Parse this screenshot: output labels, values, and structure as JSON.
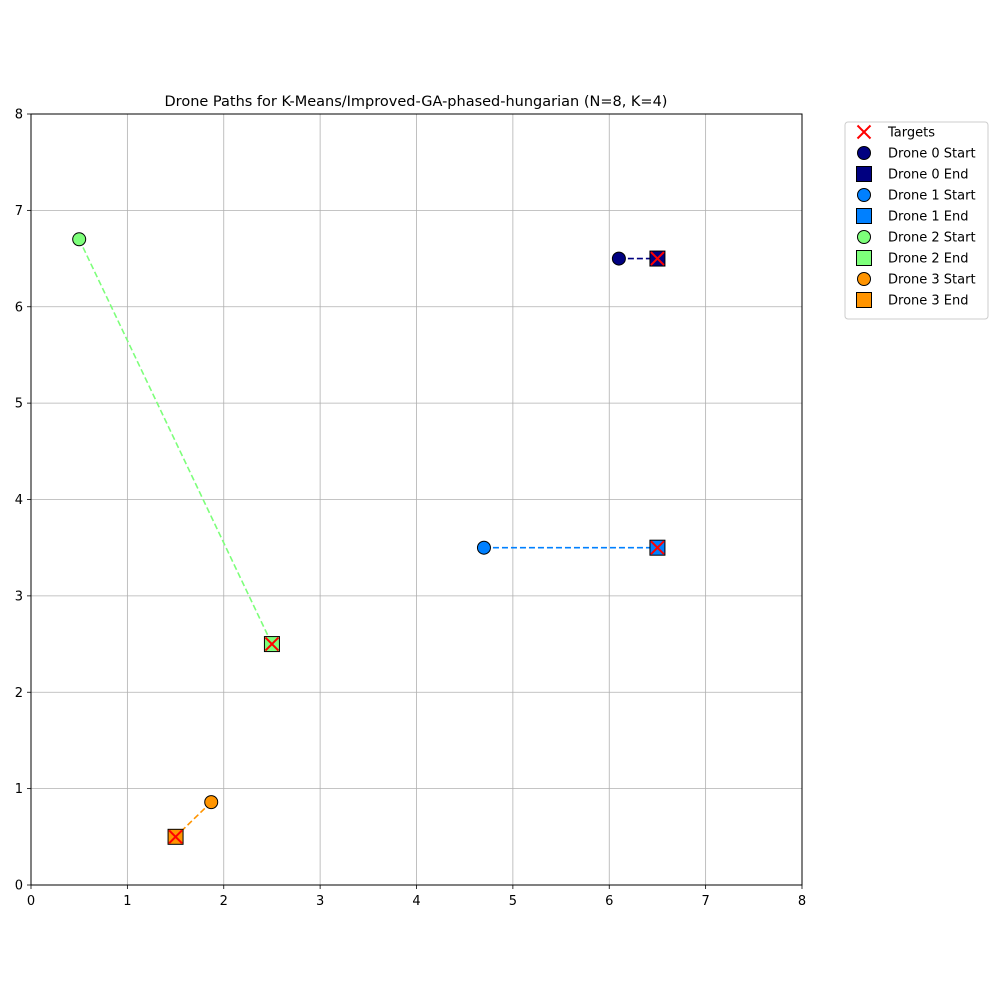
{
  "chart_data": {
    "type": "scatter",
    "title": "Drone Paths for K-Means/Improved-GA-phased-hungarian (N=8, K=4)",
    "xlabel": "",
    "ylabel": "",
    "xlim": [
      0,
      8
    ],
    "ylim": [
      0,
      8
    ],
    "xticks": [
      "0",
      "1",
      "2",
      "3",
      "4",
      "5",
      "6",
      "7",
      "8"
    ],
    "yticks": [
      "0",
      "1",
      "2",
      "3",
      "4",
      "5",
      "6",
      "7",
      "8"
    ],
    "grid": true,
    "legend_position": "outside-top-right",
    "targets": {
      "label": "Targets",
      "color": "#ff0000",
      "points": [
        [
          6.5,
          6.5
        ],
        [
          6.5,
          3.5
        ],
        [
          2.5,
          2.5
        ],
        [
          1.5,
          0.5
        ]
      ]
    },
    "drones": [
      {
        "name": "Drone 0",
        "start_label": "Drone 0 Start",
        "end_label": "Drone 0 End",
        "color": "#000080",
        "start": [
          6.1,
          6.5
        ],
        "end": [
          6.5,
          6.5
        ]
      },
      {
        "name": "Drone 1",
        "start_label": "Drone 1 Start",
        "end_label": "Drone 1 End",
        "color": "#0080ff",
        "start": [
          4.7,
          3.5
        ],
        "end": [
          6.5,
          3.5
        ]
      },
      {
        "name": "Drone 2",
        "start_label": "Drone 2 Start",
        "end_label": "Drone 2 End",
        "color": "#7dff7a",
        "start": [
          0.5,
          6.7
        ],
        "end": [
          2.5,
          2.5
        ]
      },
      {
        "name": "Drone 3",
        "start_label": "Drone 3 Start",
        "end_label": "Drone 3 End",
        "color": "#ff9400",
        "start": [
          1.87,
          0.86
        ],
        "end": [
          1.5,
          0.5
        ]
      }
    ]
  }
}
